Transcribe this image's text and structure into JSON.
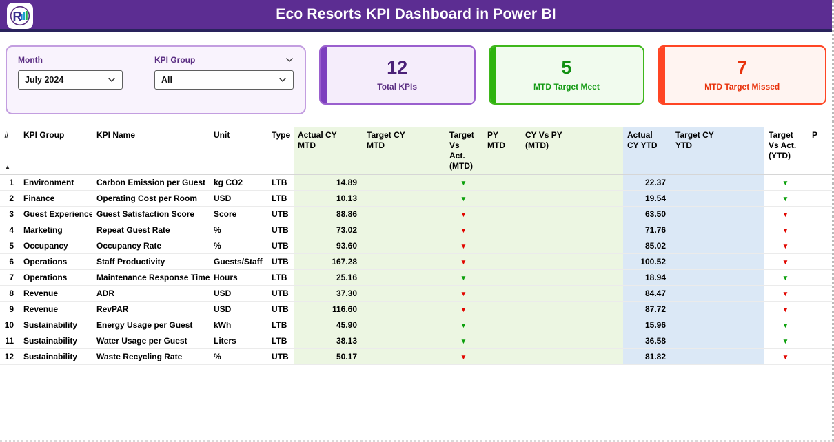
{
  "header": {
    "title": "Eco Resorts KPI Dashboard in Power BI",
    "logo_letter": "R"
  },
  "icons": {
    "chevron_down": "⌄",
    "sort_ascending": "▲",
    "variance_triangle": "▼"
  },
  "colors": {
    "title_bar": "#5c2d92",
    "card_purple_accent": "#7d3fbe",
    "card_green_accent": "#2eb30e",
    "card_red_accent": "#ff4524",
    "mtd_band": "#ecf6e2",
    "ytd_band": "#dbe8f6",
    "target_met": "#0ca00c",
    "target_missed": "#e10600"
  },
  "filters": {
    "month": {
      "label": "Month",
      "value": "July 2024"
    },
    "kpi_group": {
      "label": "KPI Group",
      "value": "All"
    }
  },
  "cards": [
    {
      "value": "12",
      "label": "Total KPIs"
    },
    {
      "value": "5",
      "label": "MTD Target Meet"
    },
    {
      "value": "7",
      "label": "MTD Target Missed"
    }
  ],
  "table": {
    "columns": [
      {
        "key": "num",
        "label": "#"
      },
      {
        "key": "group",
        "label": "KPI Group"
      },
      {
        "key": "name",
        "label": "KPI Name"
      },
      {
        "key": "unit",
        "label": "Unit"
      },
      {
        "key": "type",
        "label": "Type"
      },
      {
        "key": "actual_mtd",
        "label": "Actual CY\nMTD"
      },
      {
        "key": "target_mtd",
        "label": "Target CY\nMTD"
      },
      {
        "key": "tva_mtd",
        "label": "Target Vs\nAct.\n(MTD)"
      },
      {
        "key": "py_mtd",
        "label": "PY MTD"
      },
      {
        "key": "cy_vs_py_mtd",
        "label": "CY Vs PY\n(MTD)"
      },
      {
        "key": "actual_ytd",
        "label": "Actual\nCY YTD"
      },
      {
        "key": "target_ytd",
        "label": "Target CY\nYTD"
      },
      {
        "key": "tva_ytd",
        "label": "Target\nVs Act.\n(YTD)"
      },
      {
        "key": "p",
        "label": "P"
      }
    ],
    "rows": [
      {
        "num": "1",
        "group": "Environment",
        "name": "Carbon Emission per Guest",
        "unit": "kg CO2",
        "type": "LTB",
        "actual_mtd": "14.89",
        "target_mtd": "",
        "tva_mtd": "meet",
        "py_mtd": "",
        "cy_vs_py_mtd": "",
        "actual_ytd": "22.37",
        "target_ytd": "",
        "tva_ytd": "meet",
        "p": ""
      },
      {
        "num": "2",
        "group": "Finance",
        "name": "Operating Cost per Room",
        "unit": "USD",
        "type": "LTB",
        "actual_mtd": "10.13",
        "target_mtd": "",
        "tva_mtd": "meet",
        "py_mtd": "",
        "cy_vs_py_mtd": "",
        "actual_ytd": "19.54",
        "target_ytd": "",
        "tva_ytd": "meet",
        "p": ""
      },
      {
        "num": "3",
        "group": "Guest Experience",
        "name": "Guest Satisfaction Score",
        "unit": "Score",
        "type": "UTB",
        "actual_mtd": "88.86",
        "target_mtd": "",
        "tva_mtd": "miss",
        "py_mtd": "",
        "cy_vs_py_mtd": "",
        "actual_ytd": "63.50",
        "target_ytd": "",
        "tva_ytd": "miss",
        "p": ""
      },
      {
        "num": "4",
        "group": "Marketing",
        "name": "Repeat Guest Rate",
        "unit": "%",
        "type": "UTB",
        "actual_mtd": "73.02",
        "target_mtd": "",
        "tva_mtd": "miss",
        "py_mtd": "",
        "cy_vs_py_mtd": "",
        "actual_ytd": "71.76",
        "target_ytd": "",
        "tva_ytd": "miss",
        "p": ""
      },
      {
        "num": "5",
        "group": "Occupancy",
        "name": "Occupancy Rate",
        "unit": "%",
        "type": "UTB",
        "actual_mtd": "93.60",
        "target_mtd": "",
        "tva_mtd": "miss",
        "py_mtd": "",
        "cy_vs_py_mtd": "",
        "actual_ytd": "85.02",
        "target_ytd": "",
        "tva_ytd": "miss",
        "p": ""
      },
      {
        "num": "6",
        "group": "Operations",
        "name": "Staff Productivity",
        "unit": "Guests/Staff",
        "type": "UTB",
        "actual_mtd": "167.28",
        "target_mtd": "",
        "tva_mtd": "miss",
        "py_mtd": "",
        "cy_vs_py_mtd": "",
        "actual_ytd": "100.52",
        "target_ytd": "",
        "tva_ytd": "miss",
        "p": ""
      },
      {
        "num": "7",
        "group": "Operations",
        "name": "Maintenance Response Time",
        "unit": "Hours",
        "type": "LTB",
        "actual_mtd": "25.16",
        "target_mtd": "",
        "tva_mtd": "meet",
        "py_mtd": "",
        "cy_vs_py_mtd": "",
        "actual_ytd": "18.94",
        "target_ytd": "",
        "tva_ytd": "meet",
        "p": ""
      },
      {
        "num": "8",
        "group": "Revenue",
        "name": "ADR",
        "unit": "USD",
        "type": "UTB",
        "actual_mtd": "37.30",
        "target_mtd": "",
        "tva_mtd": "miss",
        "py_mtd": "",
        "cy_vs_py_mtd": "",
        "actual_ytd": "84.47",
        "target_ytd": "",
        "tva_ytd": "miss",
        "p": ""
      },
      {
        "num": "9",
        "group": "Revenue",
        "name": "RevPAR",
        "unit": "USD",
        "type": "UTB",
        "actual_mtd": "116.60",
        "target_mtd": "",
        "tva_mtd": "miss",
        "py_mtd": "",
        "cy_vs_py_mtd": "",
        "actual_ytd": "87.72",
        "target_ytd": "",
        "tva_ytd": "miss",
        "p": ""
      },
      {
        "num": "10",
        "group": "Sustainability",
        "name": "Energy Usage per Guest",
        "unit": "kWh",
        "type": "LTB",
        "actual_mtd": "45.90",
        "target_mtd": "",
        "tva_mtd": "meet",
        "py_mtd": "",
        "cy_vs_py_mtd": "",
        "actual_ytd": "15.96",
        "target_ytd": "",
        "tva_ytd": "meet",
        "p": ""
      },
      {
        "num": "11",
        "group": "Sustainability",
        "name": "Water Usage per Guest",
        "unit": "Liters",
        "type": "LTB",
        "actual_mtd": "38.13",
        "target_mtd": "",
        "tva_mtd": "meet",
        "py_mtd": "",
        "cy_vs_py_mtd": "",
        "actual_ytd": "36.58",
        "target_ytd": "",
        "tva_ytd": "meet",
        "p": ""
      },
      {
        "num": "12",
        "group": "Sustainability",
        "name": "Waste Recycling Rate",
        "unit": "%",
        "type": "UTB",
        "actual_mtd": "50.17",
        "target_mtd": "",
        "tva_mtd": "miss",
        "py_mtd": "",
        "cy_vs_py_mtd": "",
        "actual_ytd": "81.82",
        "target_ytd": "",
        "tva_ytd": "miss",
        "p": ""
      }
    ]
  }
}
